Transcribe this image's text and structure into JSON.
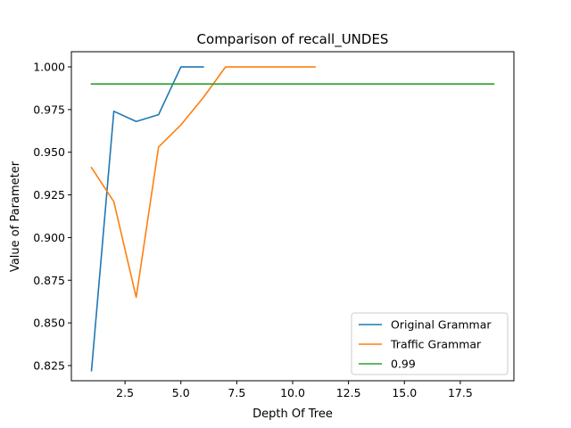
{
  "chart_data": {
    "type": "line",
    "title": "Comparison of recall_UNDES",
    "xlabel": "Depth Of Tree",
    "ylabel": "Value of Parameter",
    "xlim": [
      0.1,
      19.9
    ],
    "ylim": [
      0.8161,
      1.0089
    ],
    "x_ticks": [
      2.5,
      5.0,
      7.5,
      10.0,
      12.5,
      15.0,
      17.5
    ],
    "x_tick_labels": [
      "2.5",
      "5.0",
      "7.5",
      "10.0",
      "12.5",
      "15.0",
      "17.5"
    ],
    "y_ticks": [
      0.825,
      0.85,
      0.875,
      0.9,
      0.925,
      0.95,
      0.975,
      1.0
    ],
    "y_tick_labels": [
      "0.825",
      "0.850",
      "0.875",
      "0.900",
      "0.925",
      "0.950",
      "0.975",
      "1.000"
    ],
    "grid": false,
    "legend_position": "lower-right",
    "series": [
      {
        "name": "Original Grammar",
        "color": "#1f77b4",
        "x": [
          1,
          2,
          3,
          4,
          5,
          6
        ],
        "y": [
          0.822,
          0.974,
          0.968,
          0.972,
          1.0,
          1.0
        ]
      },
      {
        "name": "Traffic Grammar",
        "color": "#ff7f0e",
        "x": [
          1,
          2,
          3,
          4,
          5,
          6,
          7,
          8,
          9,
          10,
          11
        ],
        "y": [
          0.941,
          0.921,
          0.865,
          0.953,
          0.966,
          0.982,
          1.0,
          1.0,
          1.0,
          1.0,
          1.0
        ]
      },
      {
        "name": "0.99",
        "color": "#2ca02c",
        "x": [
          1,
          19
        ],
        "y": [
          0.99,
          0.99
        ]
      }
    ]
  }
}
